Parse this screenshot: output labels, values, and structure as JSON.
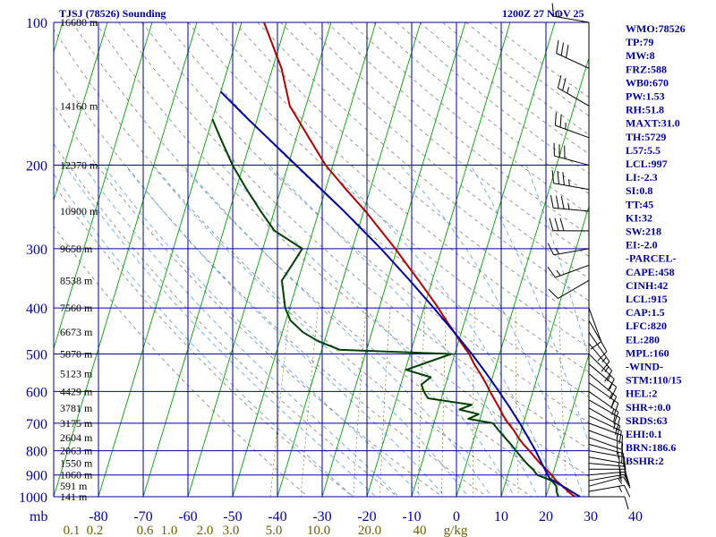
{
  "header": {
    "station": "TJSJ (78526) Sounding",
    "time": "1200Z 27 NOV 25"
  },
  "chart_data": {
    "type": "line",
    "title": "TJSJ (78526) Sounding",
    "subtitle": "1200Z 27 NOV 25",
    "pressure_axis_label": "mb",
    "pressure_levels": [
      100,
      200,
      300,
      400,
      500,
      600,
      700,
      800,
      900,
      1000
    ],
    "temperature_ticks": [
      -80,
      -70,
      -60,
      -50,
      -40,
      -30,
      -20,
      -10,
      0,
      10,
      20,
      30,
      40
    ],
    "mixing_ratio_labels": [
      "0.1",
      "0.2",
      "0.6",
      "1.0",
      "2.0",
      "3.0",
      "5.0",
      "10.0",
      "20.0",
      "40",
      "g/kg"
    ],
    "height_labels": [
      {
        "p": 100,
        "text": "16680 m"
      },
      {
        "p": 150,
        "text": "14160 m"
      },
      {
        "p": 200,
        "text": "12370 m"
      },
      {
        "p": 250,
        "text": "10900 m"
      },
      {
        "p": 300,
        "text": "9658 m"
      },
      {
        "p": 350,
        "text": "8538 m"
      },
      {
        "p": 400,
        "text": "7560 m"
      },
      {
        "p": 450,
        "text": "6673 m"
      },
      {
        "p": 500,
        "text": "5870 m"
      },
      {
        "p": 550,
        "text": "5123 m"
      },
      {
        "p": 600,
        "text": "4429 m"
      },
      {
        "p": 650,
        "text": "3781 m"
      },
      {
        "p": 700,
        "text": "3175 m"
      },
      {
        "p": 750,
        "text": "2604 m"
      },
      {
        "p": 800,
        "text": "2063 m"
      },
      {
        "p": 850,
        "text": "1550 m"
      },
      {
        "p": 900,
        "text": "1060 m"
      },
      {
        "p": 950,
        "text": "591 m"
      },
      {
        "p": 1000,
        "text": "141 m"
      }
    ],
    "series": [
      {
        "name": "Temperature",
        "color": "#b00000",
        "points": [
          [
            1011,
            27.5
          ],
          [
            1000,
            26.4
          ],
          [
            975,
            24.6
          ],
          [
            950,
            23.0
          ],
          [
            925,
            21.2
          ],
          [
            900,
            19.8
          ],
          [
            875,
            18.2
          ],
          [
            850,
            16.4
          ],
          [
            825,
            14.8
          ],
          [
            800,
            13.2
          ],
          [
            775,
            11.4
          ],
          [
            750,
            9.8
          ],
          [
            725,
            8.4
          ],
          [
            700,
            6.6
          ],
          [
            675,
            5.0
          ],
          [
            650,
            3.6
          ],
          [
            625,
            2.0
          ],
          [
            600,
            0.4
          ],
          [
            575,
            -1.2
          ],
          [
            550,
            -3.0
          ],
          [
            525,
            -5.0
          ],
          [
            500,
            -6.8
          ],
          [
            475,
            -9.2
          ],
          [
            450,
            -11.6
          ],
          [
            425,
            -14.2
          ],
          [
            400,
            -16.8
          ],
          [
            375,
            -19.8
          ],
          [
            350,
            -23.0
          ],
          [
            325,
            -26.6
          ],
          [
            300,
            -30.4
          ],
          [
            275,
            -34.8
          ],
          [
            250,
            -39.6
          ],
          [
            225,
            -45.4
          ],
          [
            200,
            -51.6
          ],
          [
            175,
            -57.2
          ],
          [
            150,
            -63.6
          ],
          [
            125,
            -68.0
          ],
          [
            100,
            -75.0
          ]
        ]
      },
      {
        "name": "Dewpoint",
        "color": "#004000",
        "points": [
          [
            1011,
            23.0
          ],
          [
            1000,
            22.8
          ],
          [
            975,
            22.0
          ],
          [
            950,
            21.6
          ],
          [
            925,
            20.2
          ],
          [
            900,
            16.6
          ],
          [
            875,
            15.2
          ],
          [
            850,
            13.4
          ],
          [
            825,
            11.8
          ],
          [
            800,
            10.2
          ],
          [
            775,
            8.6
          ],
          [
            750,
            6.8
          ],
          [
            725,
            5.0
          ],
          [
            700,
            3.2
          ],
          [
            685,
            -2.6
          ],
          [
            670,
            -0.6
          ],
          [
            655,
            -5.2
          ],
          [
            640,
            -2.8
          ],
          [
            620,
            -13.0
          ],
          [
            600,
            -14.4
          ],
          [
            580,
            -15.4
          ],
          [
            560,
            -13.8
          ],
          [
            540,
            -19.8
          ],
          [
            500,
            -10.8
          ],
          [
            490,
            -36.0
          ],
          [
            470,
            -41.4
          ],
          [
            450,
            -45.4
          ],
          [
            425,
            -49.0
          ],
          [
            400,
            -51.0
          ],
          [
            380,
            -52.0
          ],
          [
            350,
            -53.6
          ],
          [
            325,
            -52.4
          ],
          [
            300,
            -51.2
          ],
          [
            275,
            -58.6
          ],
          [
            250,
            -63.0
          ],
          [
            225,
            -67.6
          ],
          [
            200,
            -72.4
          ],
          [
            175,
            -77.0
          ],
          [
            160,
            -80.0
          ]
        ]
      },
      {
        "name": "Parcel",
        "color": "#0000a0",
        "points": [
          [
            1000,
            27.6
          ],
          [
            950,
            23.0
          ],
          [
            915,
            19.6
          ],
          [
            850,
            16.8
          ],
          [
            800,
            14.6
          ],
          [
            750,
            12.0
          ],
          [
            700,
            9.2
          ],
          [
            650,
            6.0
          ],
          [
            600,
            2.4
          ],
          [
            550,
            -1.6
          ],
          [
            500,
            -6.2
          ],
          [
            450,
            -11.6
          ],
          [
            400,
            -17.8
          ],
          [
            350,
            -25.0
          ],
          [
            300,
            -33.6
          ],
          [
            250,
            -44.4
          ],
          [
            200,
            -58.2
          ],
          [
            160,
            -72.0
          ],
          [
            140,
            -80.0
          ]
        ]
      }
    ],
    "wind_barbs": [
      {
        "p": 1000,
        "dir": 90,
        "kt": 10
      },
      {
        "p": 975,
        "dir": 80,
        "kt": 15
      },
      {
        "p": 950,
        "dir": 75,
        "kt": 15
      },
      {
        "p": 925,
        "dir": 80,
        "kt": 15
      },
      {
        "p": 900,
        "dir": 85,
        "kt": 15
      },
      {
        "p": 875,
        "dir": 90,
        "kt": 15
      },
      {
        "p": 850,
        "dir": 95,
        "kt": 15
      },
      {
        "p": 825,
        "dir": 100,
        "kt": 15
      },
      {
        "p": 800,
        "dir": 100,
        "kt": 15
      },
      {
        "p": 775,
        "dir": 105,
        "kt": 15
      },
      {
        "p": 750,
        "dir": 110,
        "kt": 15
      },
      {
        "p": 725,
        "dir": 110,
        "kt": 15
      },
      {
        "p": 700,
        "dir": 110,
        "kt": 15
      },
      {
        "p": 675,
        "dir": 115,
        "kt": 15
      },
      {
        "p": 650,
        "dir": 120,
        "kt": 15
      },
      {
        "p": 625,
        "dir": 120,
        "kt": 15
      },
      {
        "p": 600,
        "dir": 125,
        "kt": 15
      },
      {
        "p": 575,
        "dir": 125,
        "kt": 15
      },
      {
        "p": 550,
        "dir": 130,
        "kt": 15
      },
      {
        "p": 525,
        "dir": 130,
        "kt": 15
      },
      {
        "p": 500,
        "dir": 135,
        "kt": 15
      },
      {
        "p": 475,
        "dir": 140,
        "kt": 15
      },
      {
        "p": 450,
        "dir": 145,
        "kt": 15
      },
      {
        "p": 425,
        "dir": 150,
        "kt": 10
      },
      {
        "p": 400,
        "dir": 160,
        "kt": 10
      },
      {
        "p": 350,
        "dir": 240,
        "kt": 10
      },
      {
        "p": 325,
        "dir": 250,
        "kt": 15
      },
      {
        "p": 300,
        "dir": 260,
        "kt": 15
      },
      {
        "p": 275,
        "dir": 270,
        "kt": 30
      },
      {
        "p": 250,
        "dir": 275,
        "kt": 35
      },
      {
        "p": 225,
        "dir": 280,
        "kt": 35
      },
      {
        "p": 200,
        "dir": 285,
        "kt": 30
      },
      {
        "p": 175,
        "dir": 290,
        "kt": 25
      },
      {
        "p": 150,
        "dir": 300,
        "kt": 25
      },
      {
        "p": 125,
        "dir": 295,
        "kt": 30
      },
      {
        "p": 100,
        "dir": 280,
        "kt": 15
      }
    ]
  },
  "indices": [
    "WMO:78526",
    "TP:79",
    "MW:8",
    "FRZ:588",
    "WB0:670",
    "PW:1.53",
    "RH:51.8",
    "MAXT:31.0",
    "TH:5729",
    "L57:5.5",
    "LCL:997",
    "LI:-2.3",
    "SI:0.8",
    "TT:45",
    "KI:32",
    "SW:218",
    "EI:-2.0",
    "-PARCEL-",
    "CAPE:458",
    "CINH:42",
    "LCL:915",
    "CAP:1.5",
    "LFC:820",
    "EL:280",
    "MPL:160",
    "-WIND-",
    "STM:110/15",
    "HEL:2",
    "SHR+:0.0",
    "SRDS:63",
    "EHI:0.1",
    "BRN:186.6",
    "BSHR:2"
  ],
  "colors": {
    "isobar": "#0000a0",
    "isotherm": "#00a000",
    "dry_adiabat": "#808080",
    "moist_adiabat": "#5aa0e0",
    "mixing_ratio": "#806000"
  }
}
